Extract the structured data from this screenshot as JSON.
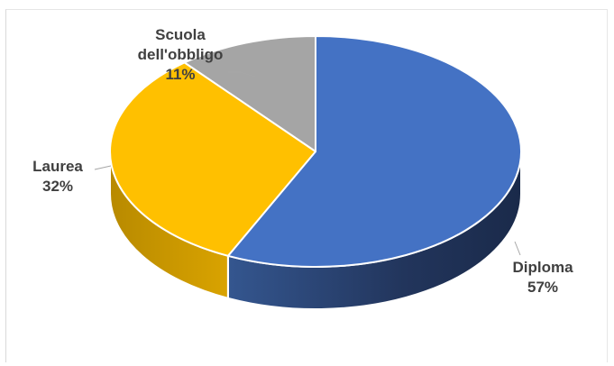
{
  "chart_data": {
    "type": "pie",
    "style": "3d",
    "slices": [
      {
        "category": "Diploma",
        "percent_label": "57%",
        "value": 57,
        "color": "#4472c4"
      },
      {
        "category": "Laurea",
        "percent_label": "32%",
        "value": 32,
        "color": "#ffc000"
      },
      {
        "category": "Scuola dell'obbligo",
        "category_lines": [
          "Scuola",
          "dell'obbligo"
        ],
        "percent_label": "11%",
        "value": 11,
        "color": "#a5a5a5"
      }
    ],
    "title": "",
    "legend": "none",
    "data_labels": "outside, category and percent"
  }
}
